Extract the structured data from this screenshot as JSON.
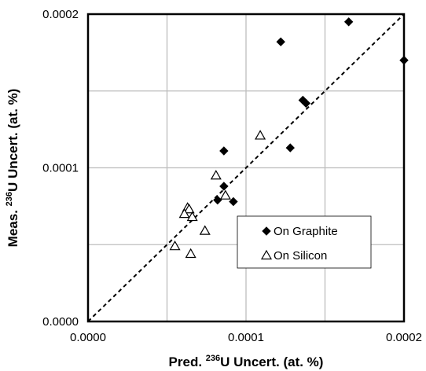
{
  "chart_data": {
    "type": "scatter",
    "xlabel": {
      "prefix": "Pred. ",
      "sup": "236",
      "suffix": "U Uncert. (at. %)"
    },
    "ylabel": {
      "prefix": "Meas. ",
      "sup": "236",
      "suffix": "U Uncert. (at. %)"
    },
    "xlim": [
      0,
      0.0002
    ],
    "ylim": [
      0,
      0.0002
    ],
    "xticks": [
      0,
      0.0001,
      0.0002
    ],
    "yticks": [
      0,
      0.0001,
      0.0002
    ],
    "xtick_labels": [
      "0.0000",
      "0.0001",
      "0.0002"
    ],
    "ytick_labels": [
      "0.0000",
      "0.0001",
      "0.0002"
    ],
    "grid": true,
    "grid_step": 5e-05,
    "legend_position": "lower-right",
    "reference_line": {
      "style": "dashed",
      "from": [
        0,
        0
      ],
      "to": [
        0.0002,
        0.0002
      ]
    },
    "series": [
      {
        "name": "On Graphite",
        "marker": "filled-diamond",
        "color": "#000000",
        "points": [
          [
            0.000122,
            0.000182
          ],
          [
            0.000165,
            0.000195
          ],
          [
            0.0002,
            0.00017
          ],
          [
            0.000136,
            0.000144
          ],
          [
            0.000138,
            0.000142
          ],
          [
            0.000128,
            0.000113
          ],
          [
            8.6e-05,
            0.000111
          ],
          [
            8.6e-05,
            8.8e-05
          ],
          [
            8.2e-05,
            7.9e-05
          ],
          [
            9.2e-05,
            7.8e-05
          ]
        ]
      },
      {
        "name": "On Silicon",
        "marker": "open-triangle",
        "color": "#000000",
        "points": [
          [
            0.000109,
            0.000121
          ],
          [
            8.1e-05,
            9.5e-05
          ],
          [
            8.7e-05,
            8.2e-05
          ],
          [
            6.3e-05,
            7.4e-05
          ],
          [
            6.4e-05,
            7.3e-05
          ],
          [
            6.1e-05,
            7e-05
          ],
          [
            6.6e-05,
            6.8e-05
          ],
          [
            7.4e-05,
            5.9e-05
          ],
          [
            5.5e-05,
            4.9e-05
          ],
          [
            6.5e-05,
            4.4e-05
          ]
        ]
      }
    ]
  }
}
